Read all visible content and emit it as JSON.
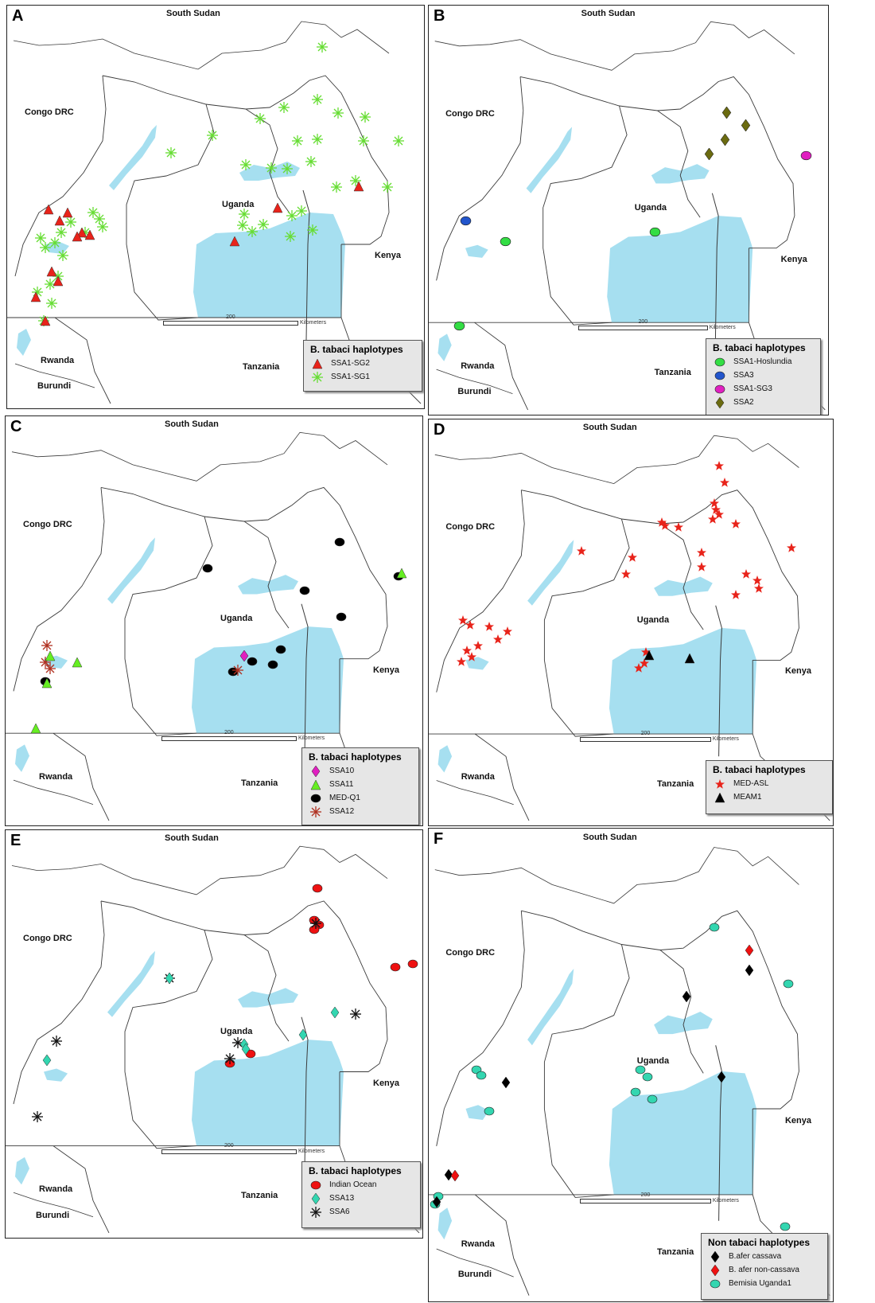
{
  "countries": {
    "south_sudan": "South Sudan",
    "congo": "Congo DRC",
    "uganda": "Uganda",
    "kenya": "Kenya",
    "rwanda": "Rwanda",
    "tanzania": "Tanzania",
    "burundi": "Burundi"
  },
  "scale": {
    "value": "200",
    "unit": "Kilometers"
  },
  "colors": {
    "water": "#a6dff0",
    "border": "#3a3a3a",
    "legend_bg": "#e6e6e6"
  },
  "panels": [
    {
      "label": "A",
      "show_burundi": true,
      "legend": {
        "title": "B. tabaci haplotypes",
        "items": [
          {
            "name": "SSA1-SG2",
            "icon": "red-triangle-icon",
            "shape": "triangle",
            "color": "#e8231a"
          },
          {
            "name": "SSA1-SG1",
            "icon": "green-asterisk-icon",
            "shape": "asterisk",
            "color": "#66dd33"
          }
        ]
      }
    },
    {
      "label": "B",
      "show_burundi": true,
      "legend": {
        "title": "B. tabaci haplotypes",
        "items": [
          {
            "name": "SSA1-Hoslundia",
            "icon": "green-oval-icon",
            "shape": "oval",
            "color": "#33dd44"
          },
          {
            "name": "SSA3",
            "icon": "blue-oval-icon",
            "shape": "oval",
            "color": "#2255cc"
          },
          {
            "name": "SSA1-SG3",
            "icon": "magenta-oval-icon",
            "shape": "oval",
            "color": "#e020c0"
          },
          {
            "name": "SSA2",
            "icon": "olive-diamond-icon",
            "shape": "diamond",
            "color": "#6b6b10"
          }
        ]
      }
    },
    {
      "label": "C",
      "show_burundi": false,
      "legend": {
        "title": "B. tabaci haplotypes",
        "items": [
          {
            "name": "SSA10",
            "icon": "magenta-diamond-icon",
            "shape": "diamond",
            "color": "#e020c0"
          },
          {
            "name": "SSA11",
            "icon": "green-triangle-icon",
            "shape": "triangle",
            "color": "#66ee22"
          },
          {
            "name": "MED-Q1",
            "icon": "black-oval-icon",
            "shape": "oval",
            "color": "#000000"
          },
          {
            "name": "SSA12",
            "icon": "brown-asterisk-icon",
            "shape": "asterisk",
            "color": "#b03020"
          }
        ]
      }
    },
    {
      "label": "D",
      "show_burundi": false,
      "legend": {
        "title": "B. tabaci haplotypes",
        "items": [
          {
            "name": "MED-ASL",
            "icon": "red-star-icon",
            "shape": "star",
            "color": "#e8231a"
          },
          {
            "name": "MEAM1",
            "icon": "black-triangle-icon",
            "shape": "triangle",
            "color": "#000000"
          }
        ]
      }
    },
    {
      "label": "E",
      "show_burundi": true,
      "legend": {
        "title": "B. tabaci haplotypes",
        "items": [
          {
            "name": "Indian Ocean",
            "icon": "red-oval-icon",
            "shape": "oval",
            "color": "#ee1111"
          },
          {
            "name": "SSA13",
            "icon": "teal-diamond-icon",
            "shape": "diamond",
            "color": "#33d6b0"
          },
          {
            "name": "SSA6",
            "icon": "black-asterisk-icon",
            "shape": "asterisk",
            "color": "#111111"
          }
        ]
      }
    },
    {
      "label": "F",
      "show_burundi": true,
      "legend": {
        "title": "Non tabaci haplotypes",
        "items": [
          {
            "name": "B.afer cassava",
            "icon": "black-diamond-icon",
            "shape": "diamond",
            "color": "#000000"
          },
          {
            "name": "B. afer non-cassava",
            "icon": "red-diamond-icon",
            "shape": "diamond",
            "color": "#ee1111"
          },
          {
            "name": "Bemisia Uganda1",
            "icon": "teal-oval-icon",
            "shape": "oval",
            "color": "#33d6b0"
          }
        ]
      }
    }
  ]
}
